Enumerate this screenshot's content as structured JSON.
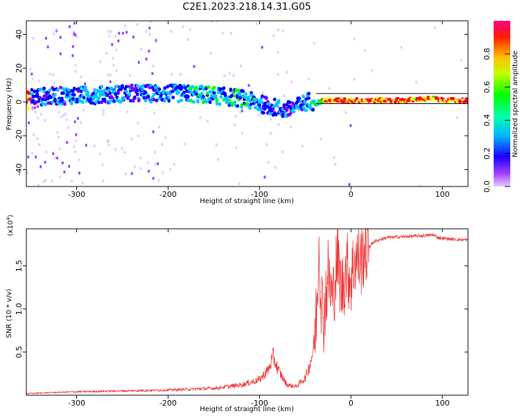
{
  "figure_title": "C2E1.2023.218.14.31.G05",
  "chart_data": [
    {
      "type": "heatmap",
      "panel": "spectrogram",
      "xlabel": "Height of straight line (km)",
      "ylabel": "Frequency (Hz)",
      "xlim": [
        -355,
        128
      ],
      "ylim": [
        -50,
        48
      ],
      "x_ticks": [
        -300,
        -200,
        -100,
        0,
        100
      ],
      "x_tick_labels": [
        "-300",
        "-200",
        "-100",
        "0",
        "100"
      ],
      "y_ticks": [
        -40,
        -20,
        0,
        20,
        40
      ],
      "y_tick_labels": [
        "-40",
        "-20",
        "0",
        "20",
        "40"
      ],
      "colorbar": {
        "label": "Normalized spectral amplitude",
        "range": [
          0,
          1
        ],
        "ticks": [
          0,
          0.2,
          0.4,
          0.6,
          0.8
        ],
        "tick_labels": [
          "0.0",
          "0.2",
          "0.4",
          "0.6",
          "0.8"
        ],
        "colormap": [
          "#e6ccff",
          "#7a00ff",
          "#0000ff",
          "#00c8ff",
          "#00ff00",
          "#ffff00",
          "#ff0000",
          "#ff0080"
        ]
      },
      "carrier_track": [
        {
          "x": -350,
          "y": 3,
          "amp": 0.25
        },
        {
          "x": -300,
          "y": 4,
          "amp": 0.35
        },
        {
          "x": -280,
          "y": 4,
          "amp": 0.35
        },
        {
          "x": -250,
          "y": 5,
          "amp": 0.3
        },
        {
          "x": -210,
          "y": 5,
          "amp": 0.3
        },
        {
          "x": -180,
          "y": 5,
          "amp": 0.4
        },
        {
          "x": -150,
          "y": 4,
          "amp": 0.4
        },
        {
          "x": -120,
          "y": 2,
          "amp": 0.4
        },
        {
          "x": -100,
          "y": -1,
          "amp": 0.35
        },
        {
          "x": -85,
          "y": -3,
          "amp": 0.3
        },
        {
          "x": -70,
          "y": -5,
          "amp": 0.3
        },
        {
          "x": -55,
          "y": -2,
          "amp": 0.3
        },
        {
          "x": -45,
          "y": 1,
          "amp": 0.35
        },
        {
          "x": -38,
          "y": -1,
          "amp": 0.5
        },
        {
          "x": -30,
          "y": 1,
          "amp": 0.75
        },
        {
          "x": -10,
          "y": 1,
          "amp": 0.8
        },
        {
          "x": 20,
          "y": 1,
          "amp": 0.8
        },
        {
          "x": 60,
          "y": 1,
          "amp": 0.8
        },
        {
          "x": 90,
          "y": 2,
          "amp": 0.75
        },
        {
          "x": 100,
          "y": 1,
          "amp": 0.8
        },
        {
          "x": 128,
          "y": 1,
          "amp": 0.8
        }
      ]
    },
    {
      "type": "line",
      "panel": "snr",
      "xlabel": "Height of straight line (km)",
      "ylabel": "SNR (10 * v/v)",
      "y_multiplier": "(x10",
      "y_multiplier_exp": "4",
      "xlim": [
        -355,
        128
      ],
      "ylim": [
        0,
        1.93
      ],
      "x_ticks": [
        -300,
        -200,
        -100,
        0,
        100
      ],
      "x_tick_labels": [
        "-300",
        "-200",
        "-100",
        "0",
        "100"
      ],
      "y_ticks": [
        0.5,
        1.0,
        1.5
      ],
      "y_tick_labels": [
        "0.5",
        "1.0",
        "1.5"
      ],
      "line_color": "#ee3333",
      "series": [
        {
          "x": [
            -355,
            -300,
            -250,
            -200,
            -150,
            -120,
            -100,
            -90,
            -85,
            -80,
            -70,
            -60,
            -50,
            -45,
            -40,
            -37,
            -35,
            -33,
            -30,
            -25,
            -20,
            -15,
            -10,
            -5,
            0,
            5,
            10,
            15,
            20,
            25,
            30,
            40,
            60,
            80,
            90,
            95,
            100,
            110,
            128
          ],
          "y": [
            0.02,
            0.04,
            0.05,
            0.06,
            0.08,
            0.12,
            0.18,
            0.3,
            0.45,
            0.3,
            0.12,
            0.1,
            0.2,
            0.35,
            0.6,
            1.1,
            1.8,
            1.2,
            0.9,
            1.4,
            1.1,
            1.6,
            1.2,
            1.5,
            1.35,
            1.6,
            1.55,
            1.7,
            1.72,
            1.78,
            1.8,
            1.83,
            1.84,
            1.85,
            1.86,
            1.83,
            1.82,
            1.81,
            1.8
          ]
        }
      ]
    }
  ]
}
